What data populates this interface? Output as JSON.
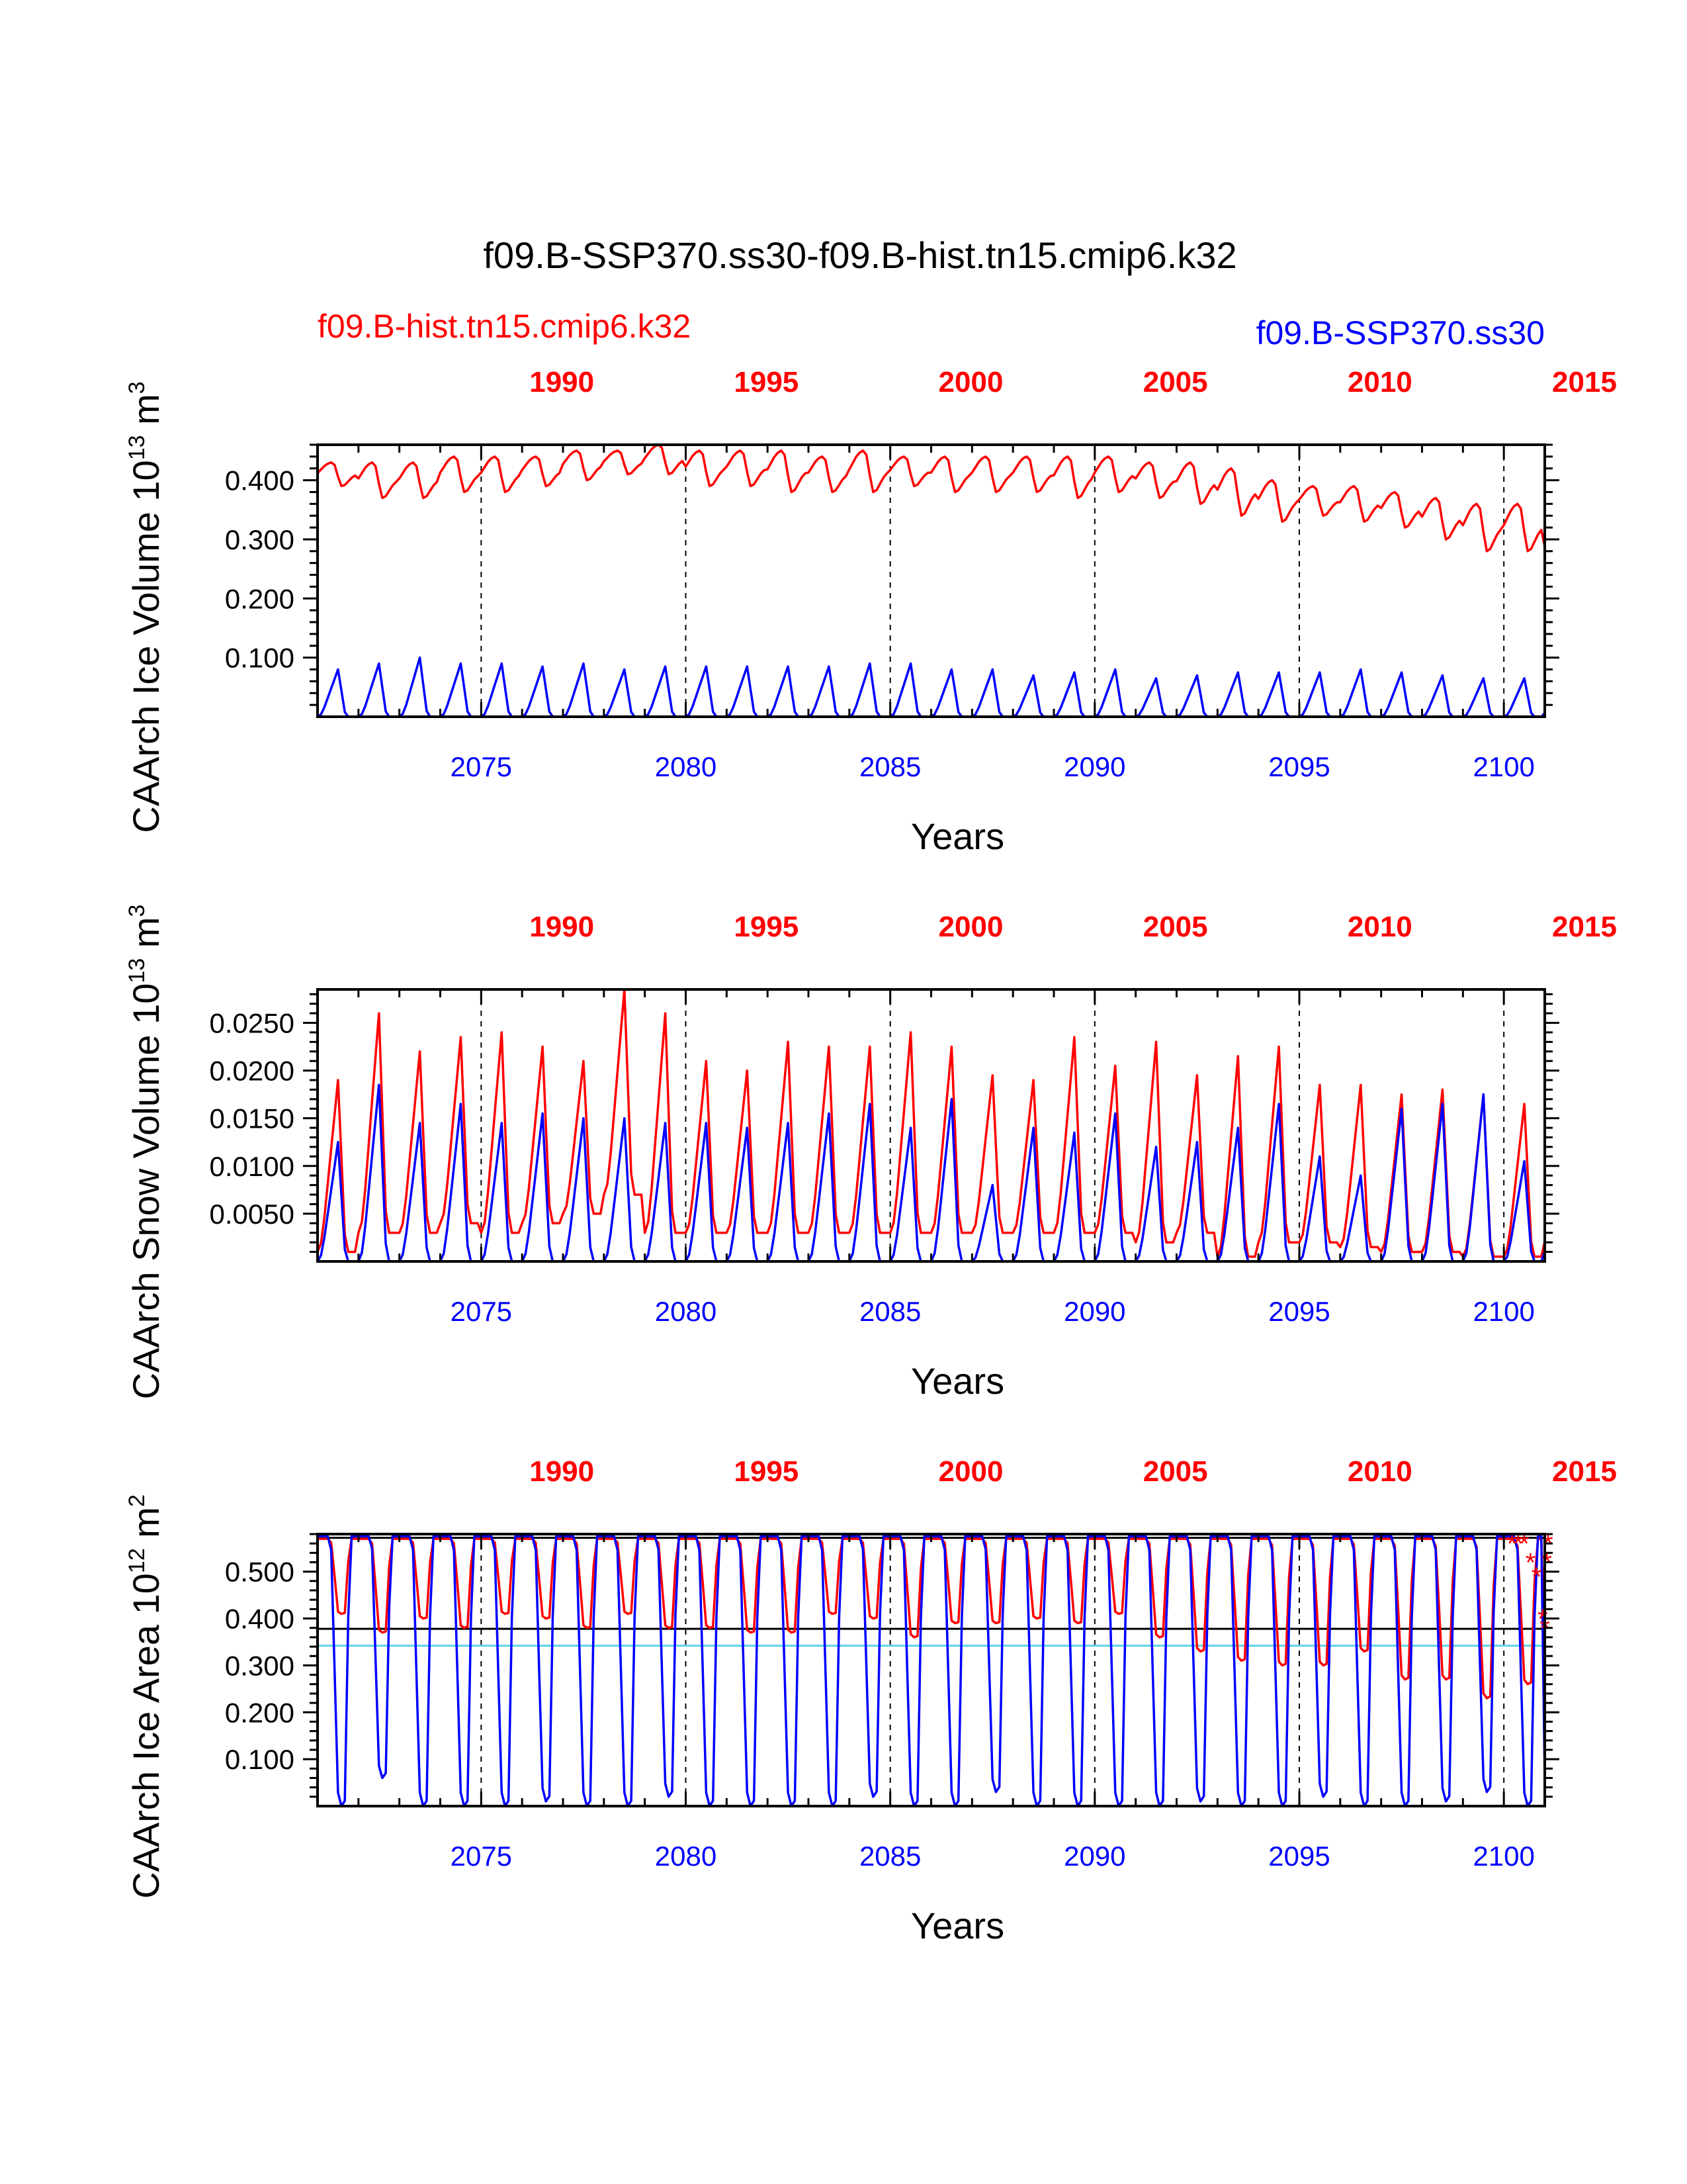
{
  "figure": {
    "title": "f09.B-SSP370.ss30-f09.B-hist.tn15.cmip6.k32",
    "legend": {
      "red_label": "f09.B-hist.tn15.cmip6.k32",
      "blue_label": "f09.B-SSP370.ss30"
    },
    "colors": {
      "red": "#ff0000",
      "blue": "#0000ff",
      "cyan": "#5fd3e8",
      "black": "#000000"
    }
  },
  "chart_data": [
    {
      "type": "line",
      "panel": "ice-volume",
      "ylabel": "CAArch Ice Volume 10^13 m^3",
      "ylabel_parts": {
        "pre": "CAArch Ice Volume 10",
        "exp1": "13",
        "mid": " m",
        "exp2": "3"
      },
      "xlabel": "Years",
      "ylim": [
        0.0,
        0.46
      ],
      "yticks": [
        0.1,
        0.2,
        0.3,
        0.4
      ],
      "ytick_labels": [
        "0.100",
        "0.200",
        "0.300",
        "0.400"
      ],
      "bottom_axis": {
        "range": [
          2071,
          2101
        ],
        "ticks": [
          2075,
          2080,
          2085,
          2090,
          2095,
          2100
        ],
        "labels": [
          "2075",
          "2080",
          "2085",
          "2090",
          "2095",
          "2100"
        ]
      },
      "top_axis": {
        "range": [
          1985,
          2015
        ],
        "labels": [
          "1990",
          "1995",
          "2000",
          "2005",
          "2010",
          "2015"
        ]
      },
      "reference_year_lines": [
        2075,
        2080,
        2085,
        2090,
        2095,
        2100
      ],
      "series": [
        {
          "name": "f09.B-hist.tn15.cmip6.k32",
          "color": "#ff0000",
          "x_start": 2071,
          "annual_min": [
            0.39,
            0.37,
            0.37,
            0.38,
            0.38,
            0.39,
            0.4,
            0.41,
            0.41,
            0.39,
            0.39,
            0.38,
            0.38,
            0.38,
            0.39,
            0.38,
            0.38,
            0.38,
            0.37,
            0.38,
            0.37,
            0.36,
            0.34,
            0.33,
            0.34,
            0.33,
            0.32,
            0.3,
            0.28,
            0.28
          ],
          "annual_max": [
            0.43,
            0.43,
            0.43,
            0.44,
            0.44,
            0.44,
            0.45,
            0.45,
            0.46,
            0.45,
            0.45,
            0.45,
            0.44,
            0.45,
            0.44,
            0.44,
            0.44,
            0.44,
            0.44,
            0.44,
            0.43,
            0.43,
            0.42,
            0.4,
            0.39,
            0.39,
            0.38,
            0.37,
            0.36,
            0.36
          ]
        },
        {
          "name": "f09.B-SSP370.ss30",
          "color": "#0000ff",
          "x_start": 2071,
          "annual_min": [
            0,
            0,
            0,
            0,
            0,
            0,
            0,
            0,
            0,
            0,
            0,
            0,
            0,
            0,
            0,
            0,
            0,
            0,
            0,
            0,
            0,
            0,
            0,
            0,
            0,
            0,
            0,
            0,
            0,
            0
          ],
          "annual_max": [
            0.08,
            0.09,
            0.1,
            0.09,
            0.09,
            0.085,
            0.09,
            0.08,
            0.085,
            0.085,
            0.085,
            0.085,
            0.085,
            0.09,
            0.09,
            0.08,
            0.08,
            0.07,
            0.075,
            0.08,
            0.065,
            0.07,
            0.075,
            0.075,
            0.075,
            0.08,
            0.075,
            0.07,
            0.065,
            0.065
          ]
        }
      ]
    },
    {
      "type": "line",
      "panel": "snow-volume",
      "ylabel": "CAArch Snow Volume 10^13 m^3",
      "ylabel_parts": {
        "pre": "CAArch Snow Volume 10",
        "exp1": "13",
        "mid": " m",
        "exp2": "3"
      },
      "xlabel": "Years",
      "ylim": [
        0.0,
        0.0285
      ],
      "yticks": [
        0.005,
        0.01,
        0.015,
        0.02,
        0.025
      ],
      "ytick_labels": [
        "0.0050",
        "0.0100",
        "0.0150",
        "0.0200",
        "0.0250"
      ],
      "bottom_axis": {
        "range": [
          2071,
          2101
        ],
        "ticks": [
          2075,
          2080,
          2085,
          2090,
          2095,
          2100
        ],
        "labels": [
          "2075",
          "2080",
          "2085",
          "2090",
          "2095",
          "2100"
        ]
      },
      "top_axis": {
        "range": [
          1985,
          2015
        ],
        "labels": [
          "1990",
          "1995",
          "2000",
          "2005",
          "2010",
          "2015"
        ]
      },
      "reference_year_lines": [
        2075,
        2080,
        2085,
        2090,
        2095,
        2100
      ],
      "series": [
        {
          "name": "f09.B-hist.tn15.cmip6.k32",
          "color": "#ff0000",
          "x_start": 2071,
          "annual_min": [
            0.001,
            0.003,
            0.003,
            0.004,
            0.003,
            0.004,
            0.005,
            0.007,
            0.003,
            0.003,
            0.003,
            0.003,
            0.003,
            0.003,
            0.003,
            0.003,
            0.003,
            0.003,
            0.003,
            0.003,
            0.002,
            0.003,
            0.0005,
            0.002,
            0.002,
            0.0015,
            0.001,
            0.001,
            0.0005,
            0.0005
          ],
          "annual_max": [
            0.019,
            0.026,
            0.022,
            0.0235,
            0.024,
            0.0225,
            0.021,
            0.0285,
            0.026,
            0.021,
            0.02,
            0.023,
            0.0225,
            0.0225,
            0.024,
            0.0225,
            0.0195,
            0.019,
            0.0235,
            0.0205,
            0.023,
            0.0195,
            0.0215,
            0.0225,
            0.0185,
            0.0185,
            0.0175,
            0.018,
            0.0175,
            0.0165
          ]
        },
        {
          "name": "f09.B-SSP370.ss30",
          "color": "#0000ff",
          "x_start": 2071,
          "annual_min": [
            0,
            0,
            0,
            0,
            0,
            0,
            0,
            0,
            0,
            0,
            0,
            0,
            0,
            0,
            0,
            0,
            0,
            0,
            0,
            0,
            0,
            0,
            0,
            0,
            0,
            0,
            0,
            0,
            0,
            0
          ],
          "annual_max": [
            0.0125,
            0.0185,
            0.0145,
            0.0165,
            0.0145,
            0.0155,
            0.015,
            0.015,
            0.0145,
            0.0145,
            0.014,
            0.0145,
            0.0155,
            0.0165,
            0.014,
            0.017,
            0.008,
            0.014,
            0.0135,
            0.0155,
            0.012,
            0.0125,
            0.014,
            0.0165,
            0.011,
            0.009,
            0.016,
            0.0165,
            0.0175,
            0.0105
          ]
        }
      ]
    },
    {
      "type": "line",
      "panel": "ice-area",
      "ylabel": "CAArch Ice Area 10^12 m^2",
      "ylabel_parts": {
        "pre": "CAArch Ice Area 10",
        "exp1": "12",
        "mid": " m",
        "exp2": "2"
      },
      "xlabel": "Years",
      "ylim": [
        0.0,
        0.58
      ],
      "yticks": [
        0.1,
        0.2,
        0.3,
        0.4,
        0.5
      ],
      "ytick_labels": [
        "0.100",
        "0.200",
        "0.300",
        "0.400",
        "0.500"
      ],
      "bottom_axis": {
        "range": [
          2071,
          2101
        ],
        "ticks": [
          2075,
          2080,
          2085,
          2090,
          2095,
          2100
        ],
        "labels": [
          "2075",
          "2080",
          "2085",
          "2090",
          "2095",
          "2100"
        ]
      },
      "top_axis": {
        "range": [
          1985,
          2015
        ],
        "labels": [
          "1990",
          "1995",
          "2000",
          "2005",
          "2010",
          "2015"
        ]
      },
      "reference_year_lines": [
        2075,
        2080,
        2085,
        2090,
        2095,
        2100
      ],
      "horizontal_lines": [
        {
          "value": 0.572,
          "color": "#000000"
        },
        {
          "value": 0.378,
          "color": "#000000"
        },
        {
          "value": 0.342,
          "color": "#5fd3e8"
        }
      ],
      "series": [
        {
          "name": "f09.B-hist.tn15.cmip6.k32",
          "color": "#ff0000",
          "x_start": 2071,
          "annual_min": [
            0.41,
            0.37,
            0.4,
            0.38,
            0.41,
            0.4,
            0.38,
            0.41,
            0.38,
            0.38,
            0.37,
            0.37,
            0.41,
            0.4,
            0.36,
            0.39,
            0.39,
            0.4,
            0.39,
            0.41,
            0.36,
            0.33,
            0.31,
            0.3,
            0.3,
            0.33,
            0.27,
            0.27,
            0.23,
            0.26
          ],
          "annual_max": [
            0.57,
            0.57,
            0.57,
            0.57,
            0.57,
            0.57,
            0.57,
            0.57,
            0.57,
            0.57,
            0.57,
            0.57,
            0.57,
            0.57,
            0.57,
            0.57,
            0.57,
            0.57,
            0.57,
            0.57,
            0.57,
            0.57,
            0.57,
            0.57,
            0.57,
            0.57,
            0.57,
            0.57,
            0.57,
            0.57
          ]
        },
        {
          "name": "f09.B-SSP370.ss30",
          "color": "#0000ff",
          "x_start": 2071,
          "annual_min": [
            0,
            0.06,
            0,
            0,
            0,
            0.01,
            0,
            0,
            0.02,
            0,
            0,
            0,
            0,
            0.02,
            0,
            0,
            0.03,
            0,
            0,
            0,
            0,
            0.01,
            0,
            0,
            0.02,
            0,
            0,
            0.01,
            0.03,
            0
          ],
          "annual_max": [
            0.575,
            0.575,
            0.575,
            0.575,
            0.575,
            0.575,
            0.575,
            0.575,
            0.575,
            0.575,
            0.575,
            0.575,
            0.575,
            0.575,
            0.575,
            0.575,
            0.575,
            0.575,
            0.575,
            0.575,
            0.575,
            0.575,
            0.575,
            0.575,
            0.575,
            0.575,
            0.575,
            0.575,
            0.575,
            0.575
          ]
        }
      ],
      "markers": {
        "color": "#ff0000",
        "symbol": "*",
        "points": [
          [
            2100.2,
            0.56
          ],
          [
            2100.35,
            0.56
          ],
          [
            2100.5,
            0.56
          ],
          [
            2100.65,
            0.52
          ],
          [
            2100.8,
            0.49
          ],
          [
            2100.95,
            0.4
          ],
          [
            2101.0,
            0.38
          ],
          [
            2101.05,
            0.52
          ],
          [
            2101.08,
            0.56
          ]
        ]
      }
    }
  ]
}
